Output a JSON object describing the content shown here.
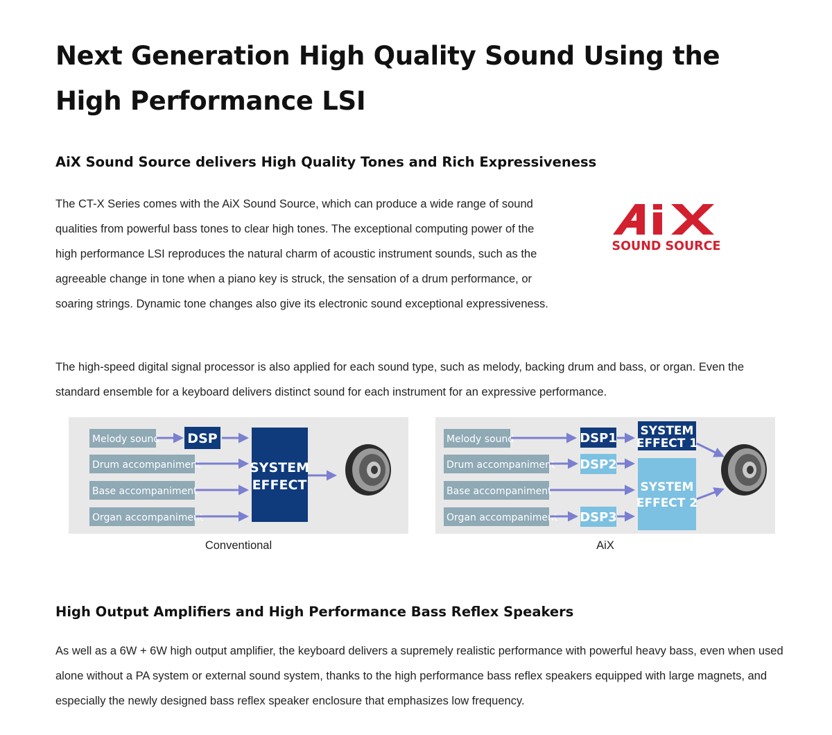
{
  "title": "Next Generation High Quality Sound Using the High Performance LSI",
  "section1": {
    "heading": "AiX Sound Source delivers High Quality Tones and Rich Expressiveness",
    "paragraph1": "The CT-X Series comes with the AiX Sound Source, which can produce a wide range of sound qualities from powerful bass tones to clear high tones. The exceptional computing power of the high performance LSI reproduces the natural charm of acoustic instrument sounds, such as the agreeable change in tone when a piano key is struck, the sensation of a drum performance, or soaring strings. Dynamic tone changes also give its electronic sound exceptional expressiveness.",
    "paragraph2": "The high-speed digital signal processor is also applied for each sound type, such as melody, backing drum and bass, or organ. Even the standard ensemble for a keyboard delivers distinct sound for each instrument for an expressive performance.",
    "logo": {
      "main_text": "AiX",
      "sub_text": "SOUND SOURCE",
      "color": "#d2202f"
    }
  },
  "diagrams": {
    "conventional": {
      "caption": "Conventional",
      "inputs": [
        "Melody sound",
        "Drum accompaniment",
        "Base accompaniment",
        "Organ accompaniment"
      ],
      "dsp": "DSP",
      "effect_line1": "SYSTEM",
      "effect_line2": "EFFECT"
    },
    "aix": {
      "caption": "AiX",
      "inputs": [
        "Melody sound",
        "Drum accompaniment",
        "Base accompaniment",
        "Organ accompaniment"
      ],
      "dsps": [
        "DSP1",
        "DSP2",
        "DSP3"
      ],
      "effect1_line1": "SYSTEM",
      "effect1_line2": "EFFECT 1",
      "effect2_line1": "SYSTEM",
      "effect2_line2": "EFFECT 2"
    },
    "colors": {
      "input_box": "#8fa9b5",
      "dark_block": "#0f3a7c",
      "light_block": "#7cc0e2",
      "arrow": "#7b7fd0"
    }
  },
  "section2": {
    "heading": "High Output Amplifiers and High Performance Bass Reflex Speakers",
    "paragraph": "As well as a 6W + 6W high output amplifier, the keyboard delivers a supremely realistic performance with powerful heavy bass, even when used alone without a PA system or external sound system, thanks to the high performance bass reflex speakers equipped with large magnets, and especially the newly designed bass reflex speaker enclosure that emphasizes low frequency."
  }
}
